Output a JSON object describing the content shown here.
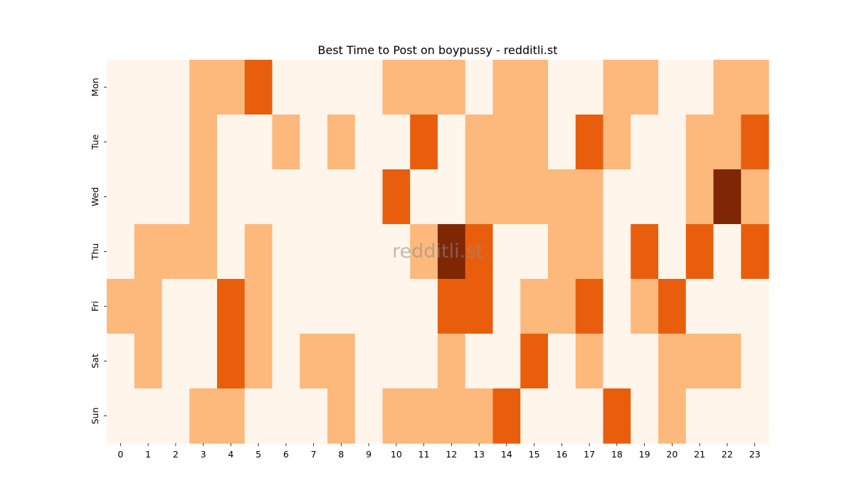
{
  "chart_data": {
    "type": "heatmap",
    "title": "Best Time to Post on boypussy - redditli.st",
    "xlabel": "",
    "ylabel": "",
    "watermark": "redditli.st",
    "x_categories": [
      "0",
      "1",
      "2",
      "3",
      "4",
      "5",
      "6",
      "7",
      "8",
      "9",
      "10",
      "11",
      "12",
      "13",
      "14",
      "15",
      "16",
      "17",
      "18",
      "19",
      "20",
      "21",
      "22",
      "23"
    ],
    "y_categories": [
      "Mon",
      "Tue",
      "Wed",
      "Thu",
      "Fri",
      "Sat",
      "Sun"
    ],
    "colormap": "Oranges",
    "level_colors": [
      "#fff5eb",
      "#fdb87c",
      "#e95e0d",
      "#7f2704"
    ],
    "values": [
      [
        0,
        0,
        0,
        1,
        1,
        2,
        0,
        0,
        0,
        0,
        1,
        1,
        1,
        0,
        1,
        1,
        0,
        0,
        1,
        1,
        0,
        0,
        1,
        1
      ],
      [
        0,
        0,
        0,
        1,
        0,
        0,
        1,
        0,
        1,
        0,
        0,
        2,
        0,
        1,
        1,
        1,
        0,
        2,
        1,
        0,
        0,
        1,
        1,
        2
      ],
      [
        0,
        0,
        0,
        1,
        0,
        0,
        0,
        0,
        0,
        0,
        2,
        0,
        0,
        1,
        1,
        1,
        1,
        1,
        0,
        0,
        0,
        1,
        3,
        1
      ],
      [
        0,
        1,
        1,
        1,
        0,
        1,
        0,
        0,
        0,
        0,
        0,
        1,
        3,
        2,
        0,
        0,
        1,
        1,
        0,
        2,
        0,
        2,
        0,
        2
      ],
      [
        1,
        1,
        0,
        0,
        2,
        1,
        0,
        0,
        0,
        0,
        0,
        0,
        2,
        2,
        0,
        1,
        1,
        2,
        0,
        1,
        2,
        0,
        0,
        0
      ],
      [
        0,
        1,
        0,
        0,
        2,
        1,
        0,
        1,
        1,
        0,
        0,
        0,
        1,
        0,
        0,
        2,
        0,
        1,
        0,
        0,
        1,
        1,
        1,
        0
      ],
      [
        0,
        0,
        0,
        1,
        1,
        0,
        0,
        0,
        1,
        0,
        1,
        1,
        1,
        1,
        2,
        0,
        0,
        0,
        2,
        0,
        1,
        0,
        0,
        0
      ]
    ]
  }
}
